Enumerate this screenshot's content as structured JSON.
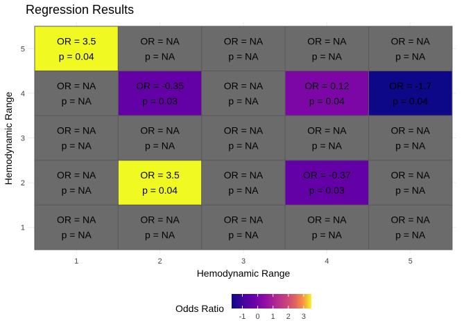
{
  "chart_data": {
    "type": "heatmap",
    "title": "Regression Results",
    "xlabel": "Hemodynamic Range",
    "ylabel": "Hemodynamic Range",
    "x_categories": [
      "1",
      "2",
      "3",
      "4",
      "5"
    ],
    "y_categories": [
      "1",
      "2",
      "3",
      "4",
      "5"
    ],
    "cells": [
      {
        "x": "1",
        "y": "5",
        "or": 3.5,
        "or_label": "OR = 3.5",
        "p_label": "p = 0.04"
      },
      {
        "x": "2",
        "y": "5",
        "or": null,
        "or_label": "OR = NA",
        "p_label": "p = NA"
      },
      {
        "x": "3",
        "y": "5",
        "or": null,
        "or_label": "OR = NA",
        "p_label": "p = NA"
      },
      {
        "x": "4",
        "y": "5",
        "or": null,
        "or_label": "OR = NA",
        "p_label": "p = NA"
      },
      {
        "x": "5",
        "y": "5",
        "or": null,
        "or_label": "OR = NA",
        "p_label": "p = NA"
      },
      {
        "x": "1",
        "y": "4",
        "or": null,
        "or_label": "OR = NA",
        "p_label": "p = NA"
      },
      {
        "x": "2",
        "y": "4",
        "or": -0.35,
        "or_label": "OR = -0.35",
        "p_label": "p = 0.03"
      },
      {
        "x": "3",
        "y": "4",
        "or": null,
        "or_label": "OR = NA",
        "p_label": "p = NA"
      },
      {
        "x": "4",
        "y": "4",
        "or": 0.12,
        "or_label": "OR = 0.12",
        "p_label": "p = 0.04"
      },
      {
        "x": "5",
        "y": "4",
        "or": -1.7,
        "or_label": "OR = -1.7",
        "p_label": "p = 0.04"
      },
      {
        "x": "1",
        "y": "3",
        "or": null,
        "or_label": "OR = NA",
        "p_label": "p = NA"
      },
      {
        "x": "2",
        "y": "3",
        "or": null,
        "or_label": "OR = NA",
        "p_label": "p = NA"
      },
      {
        "x": "3",
        "y": "3",
        "or": null,
        "or_label": "OR = NA",
        "p_label": "p = NA"
      },
      {
        "x": "4",
        "y": "3",
        "or": null,
        "or_label": "OR = NA",
        "p_label": "p = NA"
      },
      {
        "x": "5",
        "y": "3",
        "or": null,
        "or_label": "OR = NA",
        "p_label": "p = NA"
      },
      {
        "x": "1",
        "y": "2",
        "or": null,
        "or_label": "OR = NA",
        "p_label": "p = NA"
      },
      {
        "x": "2",
        "y": "2",
        "or": 3.5,
        "or_label": "OR = 3.5",
        "p_label": "p = 0.04"
      },
      {
        "x": "3",
        "y": "2",
        "or": null,
        "or_label": "OR = NA",
        "p_label": "p = NA"
      },
      {
        "x": "4",
        "y": "2",
        "or": -0.37,
        "or_label": "OR = -0.37",
        "p_label": "p = 0.03"
      },
      {
        "x": "5",
        "y": "2",
        "or": null,
        "or_label": "OR = NA",
        "p_label": "p = NA"
      },
      {
        "x": "1",
        "y": "1",
        "or": null,
        "or_label": "OR = NA",
        "p_label": "p = NA"
      },
      {
        "x": "2",
        "y": "1",
        "or": null,
        "or_label": "OR = NA",
        "p_label": "p = NA"
      },
      {
        "x": "3",
        "y": "1",
        "or": null,
        "or_label": "OR = NA",
        "p_label": "p = NA"
      },
      {
        "x": "4",
        "y": "1",
        "or": null,
        "or_label": "OR = NA",
        "p_label": "p = NA"
      },
      {
        "x": "5",
        "y": "1",
        "or": null,
        "or_label": "OR = NA",
        "p_label": "p = NA"
      }
    ],
    "na_color": "#6b6b6b",
    "colormap": "plasma",
    "color_range": [
      -1.7,
      3.5
    ],
    "legend": {
      "title": "Odds Ratio",
      "ticks": [
        "-1",
        "0",
        "1",
        "2",
        "3"
      ],
      "tick_values": [
        -1,
        0,
        1,
        2,
        3
      ],
      "position": "bottom"
    },
    "grid": true
  }
}
